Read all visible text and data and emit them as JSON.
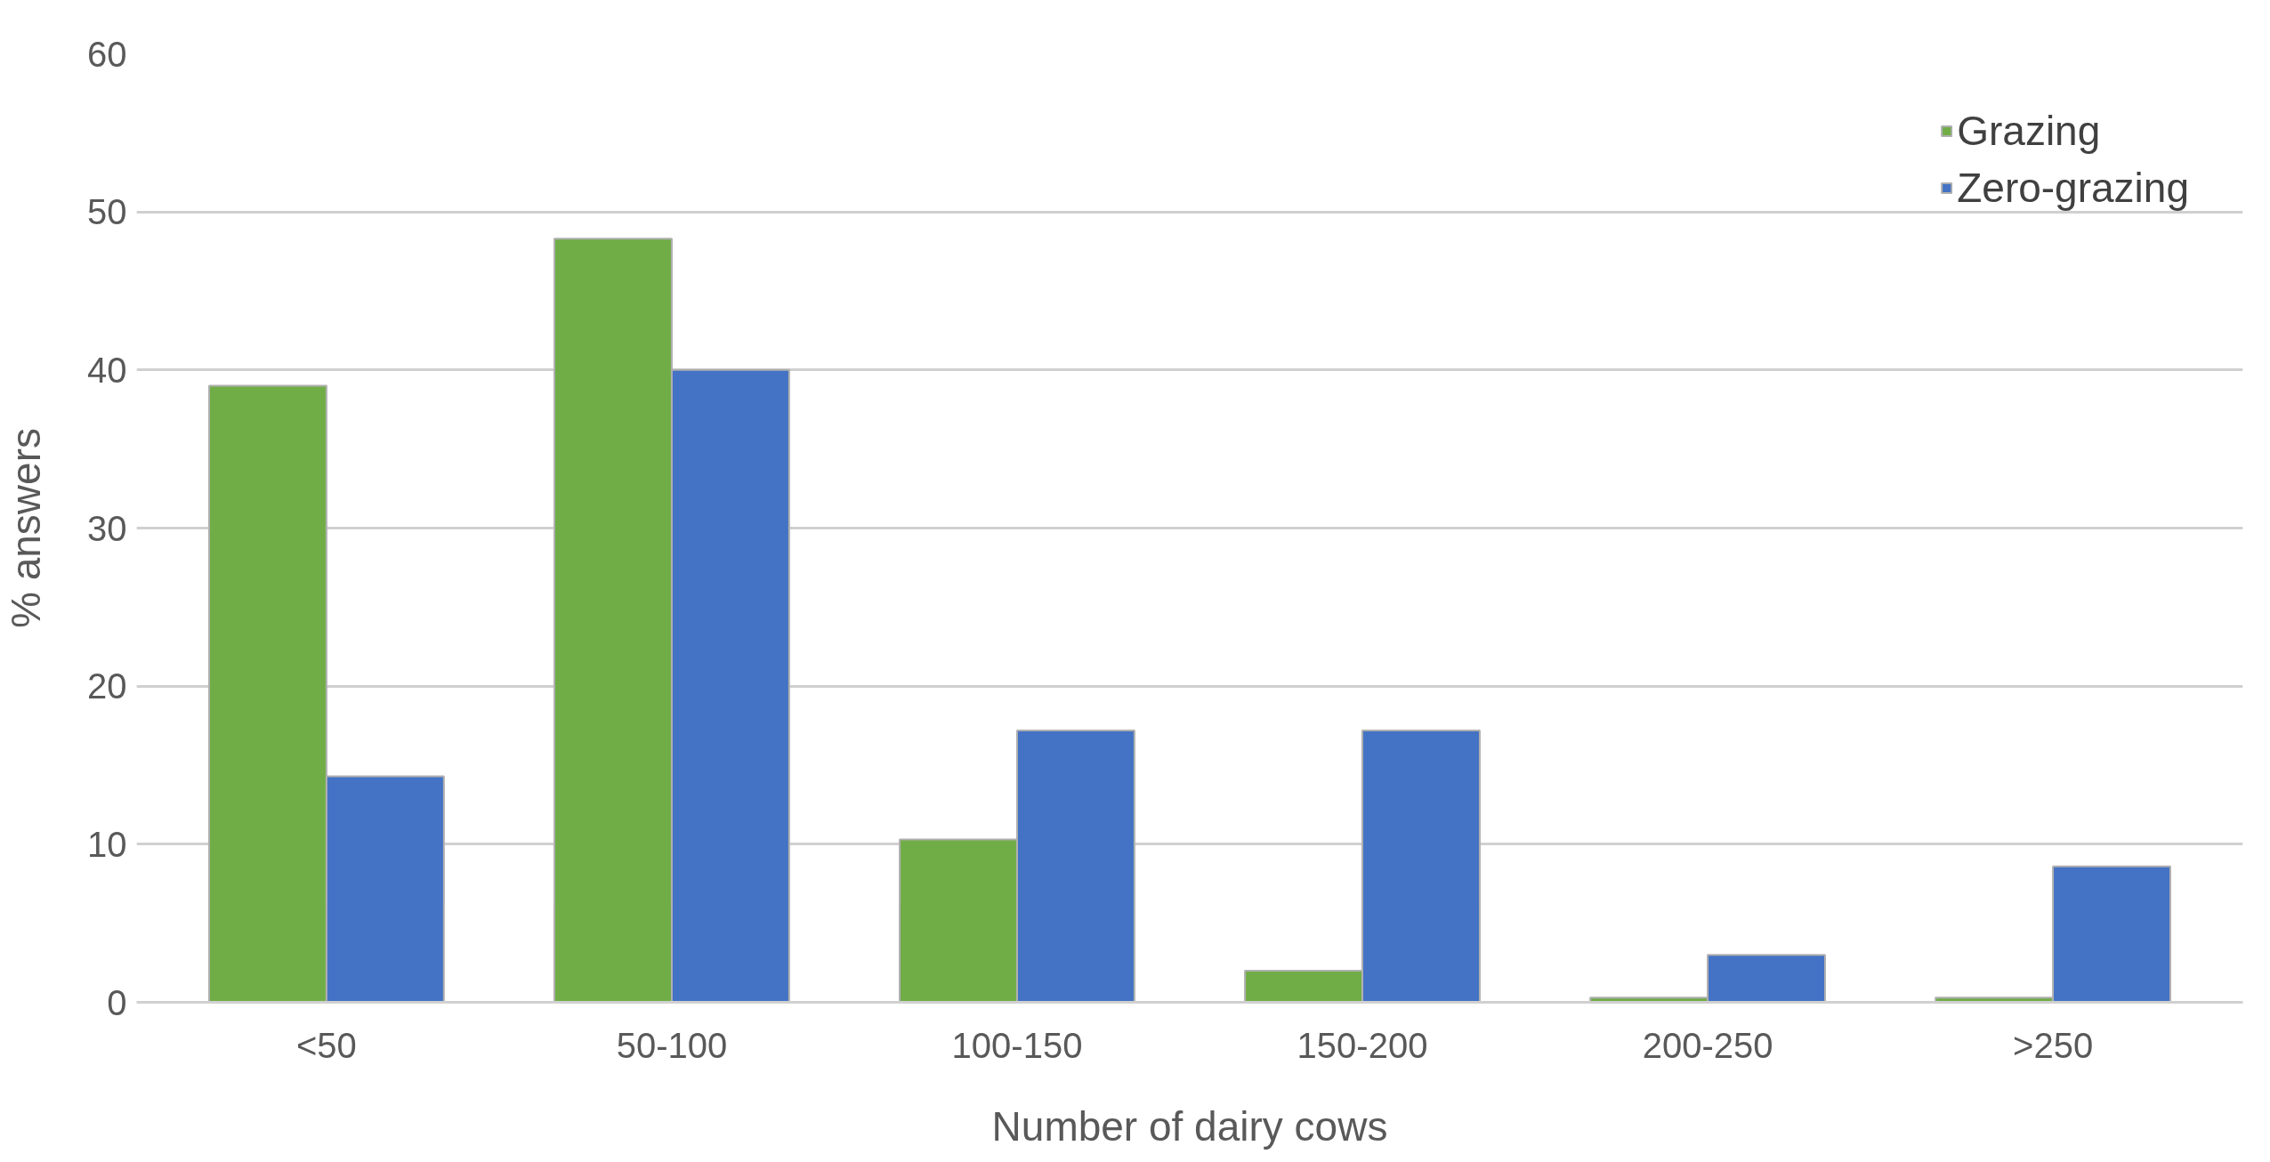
{
  "chart_data": {
    "type": "bar",
    "xlabel": "Number of dairy cows",
    "ylabel": "% answers",
    "categories": [
      "<50",
      "50-100",
      "100-150",
      "150-200",
      "200-250",
      ">250"
    ],
    "series": [
      {
        "name": "Grazing",
        "color": "#70ad47",
        "values": [
          39,
          48.3,
          10.3,
          2,
          0.3,
          0.3
        ]
      },
      {
        "name": "Zero-grazing",
        "color": "#4472c4",
        "values": [
          14.3,
          40,
          17.2,
          17.2,
          3,
          8.6
        ]
      }
    ],
    "ylim": [
      0,
      60
    ],
    "yticks": [
      0,
      10,
      20,
      30,
      40,
      50,
      60
    ],
    "grid": "y",
    "legend": "top right"
  }
}
